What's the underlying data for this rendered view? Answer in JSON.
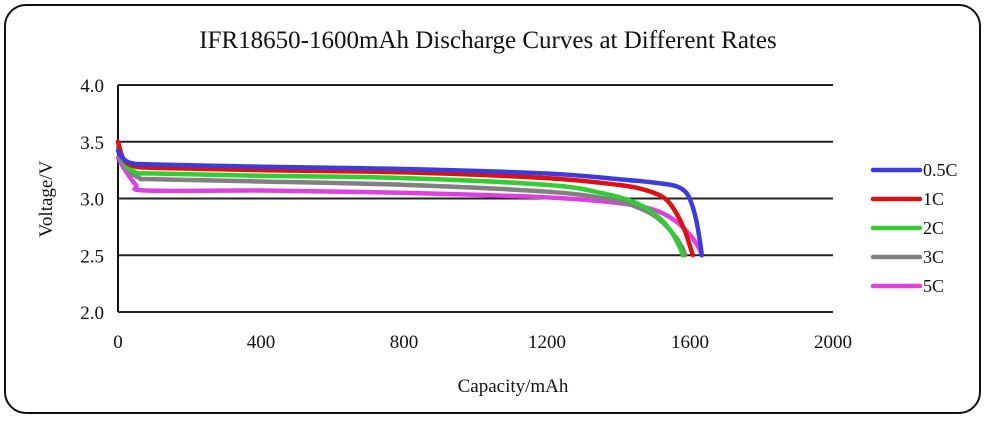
{
  "chart_data": {
    "type": "line",
    "title": "IFR18650-1600mAh Discharge Curves at Different Rates",
    "xlabel": "Capacity/mAh",
    "ylabel": "Voltage/V",
    "xlim": [
      0,
      2000
    ],
    "ylim": [
      2.0,
      4.0
    ],
    "xticks": [
      "0",
      "400",
      "800",
      "1200",
      "1600",
      "2000"
    ],
    "xtick_values": [
      0,
      400,
      800,
      1200,
      1600,
      2000
    ],
    "yticks": [
      "2.0",
      "2.5",
      "3.0",
      "3.5",
      "4.0"
    ],
    "ytick_values": [
      2.0,
      2.5,
      3.0,
      3.5,
      4.0
    ],
    "grid": "horizontal",
    "legend_position": "right",
    "series": [
      {
        "name": "0.5C",
        "color": "#3c3cdc",
        "points": [
          [
            0,
            3.42
          ],
          [
            15,
            3.35
          ],
          [
            40,
            3.31
          ],
          [
            100,
            3.3
          ],
          [
            400,
            3.28
          ],
          [
            800,
            3.26
          ],
          [
            1200,
            3.22
          ],
          [
            1400,
            3.17
          ],
          [
            1500,
            3.14
          ],
          [
            1560,
            3.11
          ],
          [
            1590,
            3.05
          ],
          [
            1605,
            2.95
          ],
          [
            1618,
            2.8
          ],
          [
            1628,
            2.62
          ],
          [
            1633,
            2.5
          ]
        ]
      },
      {
        "name": "1C",
        "color": "#e01010",
        "points": [
          [
            0,
            3.5
          ],
          [
            15,
            3.35
          ],
          [
            40,
            3.29
          ],
          [
            100,
            3.27
          ],
          [
            400,
            3.25
          ],
          [
            800,
            3.23
          ],
          [
            1200,
            3.18
          ],
          [
            1400,
            3.12
          ],
          [
            1480,
            3.07
          ],
          [
            1530,
            3.0
          ],
          [
            1560,
            2.88
          ],
          [
            1585,
            2.72
          ],
          [
            1600,
            2.58
          ],
          [
            1608,
            2.5
          ]
        ]
      },
      {
        "name": "2C",
        "color": "#33cc33",
        "points": [
          [
            0,
            3.5
          ],
          [
            15,
            3.33
          ],
          [
            50,
            3.23
          ],
          [
            100,
            3.22
          ],
          [
            400,
            3.2
          ],
          [
            800,
            3.18
          ],
          [
            1200,
            3.12
          ],
          [
            1350,
            3.05
          ],
          [
            1450,
            2.96
          ],
          [
            1510,
            2.84
          ],
          [
            1545,
            2.72
          ],
          [
            1570,
            2.58
          ],
          [
            1580,
            2.5
          ]
        ]
      },
      {
        "name": "3C",
        "color": "#808080",
        "points": [
          [
            0,
            3.45
          ],
          [
            20,
            3.28
          ],
          [
            60,
            3.18
          ],
          [
            100,
            3.17
          ],
          [
            400,
            3.15
          ],
          [
            800,
            3.12
          ],
          [
            1200,
            3.06
          ],
          [
            1380,
            2.99
          ],
          [
            1470,
            2.9
          ],
          [
            1520,
            2.8
          ],
          [
            1555,
            2.68
          ],
          [
            1578,
            2.57
          ],
          [
            1586,
            2.5
          ]
        ]
      },
      {
        "name": "5C",
        "color": "#e040e0",
        "points": [
          [
            0,
            3.36
          ],
          [
            20,
            3.25
          ],
          [
            50,
            3.12
          ],
          [
            80,
            3.07
          ],
          [
            400,
            3.07
          ],
          [
            800,
            3.05
          ],
          [
            1200,
            3.01
          ],
          [
            1400,
            2.96
          ],
          [
            1500,
            2.9
          ],
          [
            1560,
            2.8
          ],
          [
            1600,
            2.68
          ],
          [
            1622,
            2.58
          ],
          [
            1633,
            2.5
          ]
        ]
      }
    ]
  }
}
